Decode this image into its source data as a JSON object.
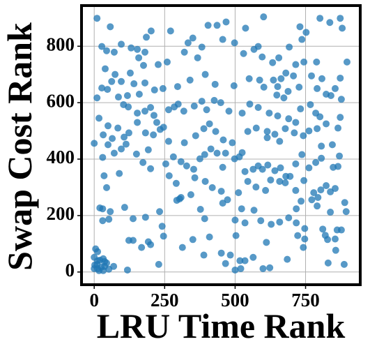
{
  "chart_data": {
    "type": "scatter",
    "x_label": "LRU Time Rank",
    "y_label": "Swap Cost Rank",
    "color": "#1f77b4",
    "grid": true,
    "xlim": [
      -45,
      944
    ],
    "ylim": [
      -45,
      944
    ],
    "xticks": [
      0,
      250,
      500,
      750
    ],
    "yticks": [
      0,
      200,
      400,
      600,
      800
    ],
    "x": [
      10,
      57,
      601,
      801,
      873,
      836,
      880,
      730,
      752,
      737,
      202,
      185,
      271,
      404,
      436,
      468,
      537,
      350,
      333,
      320,
      27,
      44,
      71,
      96,
      131,
      153,
      180,
      158,
      175,
      227,
      259,
      367,
      382,
      456,
      498,
      530,
      567,
      582,
      596,
      633,
      655,
      692,
      715,
      789,
      744,
      39,
      74,
      128,
      62,
      96,
      141,
      180,
      214,
      244,
      296,
      340,
      394,
      429,
      496,
      550,
      587,
      602,
      636,
      651,
      663,
      680,
      707,
      771,
      808,
      873,
      855,
      840,
      823,
      791,
      727,
      688,
      648,
      673,
      877,
      897,
      27,
      10,
      47,
      118,
      160,
      86,
      104,
      121,
      153,
      180,
      200,
      212,
      222,
      246,
      264,
      284,
      298,
      318,
      355,
      382,
      399,
      426,
      449,
      478,
      525,
      552,
      582,
      621,
      651,
      690,
      715,
      732,
      767,
      786,
      801,
      823,
      873,
      865,
      845,
      17,
      49,
      84,
      123,
      153,
      182,
      210,
      234,
      264,
      320,
      360,
      389,
      409,
      431,
      458,
      490,
      545,
      575,
      614,
      614,
      641,
      658,
      678,
      710,
      742,
      762,
      791,
      806,
      0,
      32,
      64,
      106,
      113,
      96,
      71,
      49,
      150,
      192,
      254,
      281,
      308,
      328,
      353,
      375,
      392,
      414,
      436,
      456,
      466,
      498,
      515,
      525,
      535,
      564,
      582,
      597,
      616,
      641,
      661,
      680,
      715,
      737,
      762,
      786,
      806,
      848,
      865,
      870,
      35,
      30,
      89,
      173,
      200,
      266,
      291,
      308,
      343,
      357,
      394,
      419,
      451,
      473,
      512,
      545,
      574,
      608,
      626,
      658,
      678,
      695,
      715,
      744,
      779,
      804,
      794,
      823,
      838,
      855,
      889,
      894,
      838,
      791,
      772,
      734,
      717,
      44,
      20,
      30,
      57,
      30,
      52,
      108,
      138,
      182,
      232,
      241,
      293,
      303,
      377,
      392,
      456,
      500,
      523,
      535,
      567,
      591,
      628,
      658,
      717,
      690,
      811,
      820,
      828,
      862,
      877,
      855,
      857,
      747,
      742,
      747,
      123,
      138,
      168,
      200,
      192,
      229,
      246,
      313,
      350,
      389,
      409,
      451,
      466,
      483,
      500,
      520,
      517,
      535,
      503,
      564,
      599,
      623,
      611,
      685,
      722,
      830,
      887,
      52,
      118,
      69,
      5,
      12,
      0,
      12,
      20,
      32,
      37,
      2,
      0,
      12,
      25,
      37,
      44,
      10,
      17,
      32
    ],
    "values": [
      899,
      869,
      904,
      899,
      899,
      884,
      864,
      869,
      849,
      824,
      854,
      832,
      854,
      874,
      874,
      886,
      864,
      829,
      812,
      779,
      799,
      784,
      779,
      807,
      794,
      789,
      779,
      759,
      732,
      735,
      744,
      759,
      797,
      824,
      812,
      774,
      789,
      799,
      762,
      742,
      759,
      797,
      735,
      744,
      744,
      720,
      700,
      705,
      675,
      675,
      667,
      670,
      645,
      650,
      657,
      680,
      700,
      665,
      660,
      685,
      680,
      655,
      680,
      657,
      685,
      705,
      695,
      695,
      685,
      687,
      650,
      625,
      630,
      650,
      655,
      640,
      627,
      617,
      612,
      744,
      652,
      617,
      647,
      625,
      630,
      620,
      593,
      585,
      563,
      570,
      583,
      555,
      530,
      513,
      575,
      585,
      595,
      570,
      588,
      605,
      575,
      608,
      600,
      570,
      563,
      595,
      583,
      563,
      553,
      543,
      530,
      578,
      593,
      563,
      550,
      525,
      548,
      510,
      451,
      545,
      518,
      510,
      493,
      530,
      493,
      486,
      505,
      463,
      458,
      483,
      508,
      525,
      498,
      468,
      458,
      498,
      510,
      498,
      476,
      488,
      463,
      508,
      493,
      483,
      500,
      508,
      446,
      456,
      486,
      473,
      478,
      453,
      436,
      421,
      451,
      418,
      433,
      383,
      408,
      391,
      376,
      364,
      401,
      416,
      436,
      421,
      371,
      421,
      401,
      408,
      423,
      356,
      364,
      376,
      364,
      379,
      359,
      369,
      339,
      383,
      416,
      369,
      388,
      403,
      371,
      374,
      411,
      341,
      406,
      349,
      388,
      366,
      341,
      314,
      264,
      274,
      334,
      321,
      299,
      286,
      256,
      281,
      321,
      301,
      289,
      326,
      321,
      316,
      339,
      289,
      324,
      281,
      291,
      264,
      306,
      284,
      296,
      246,
      214,
      212,
      234,
      256,
      251,
      224,
      299,
      227,
      224,
      214,
      182,
      187,
      229,
      189,
      194,
      214,
      162,
      254,
      259,
      222,
      189,
      244,
      184,
      224,
      174,
      219,
      182,
      169,
      177,
      174,
      192,
      152,
      130,
      115,
      149,
      149,
      117,
      77,
      154,
      87,
      117,
      112,
      112,
      87,
      97,
      107,
      27,
      127,
      87,
      115,
      60,
      124,
      67,
      30,
      60,
      7,
      12,
      40,
      40,
      129,
      52,
      12,
      15,
      105,
      45,
      129,
      32,
      27,
      10,
      7,
      20,
      82,
      72,
      52,
      40,
      42,
      47,
      37,
      25,
      12,
      12,
      17,
      20,
      32,
      27,
      5,
      5
    ]
  }
}
